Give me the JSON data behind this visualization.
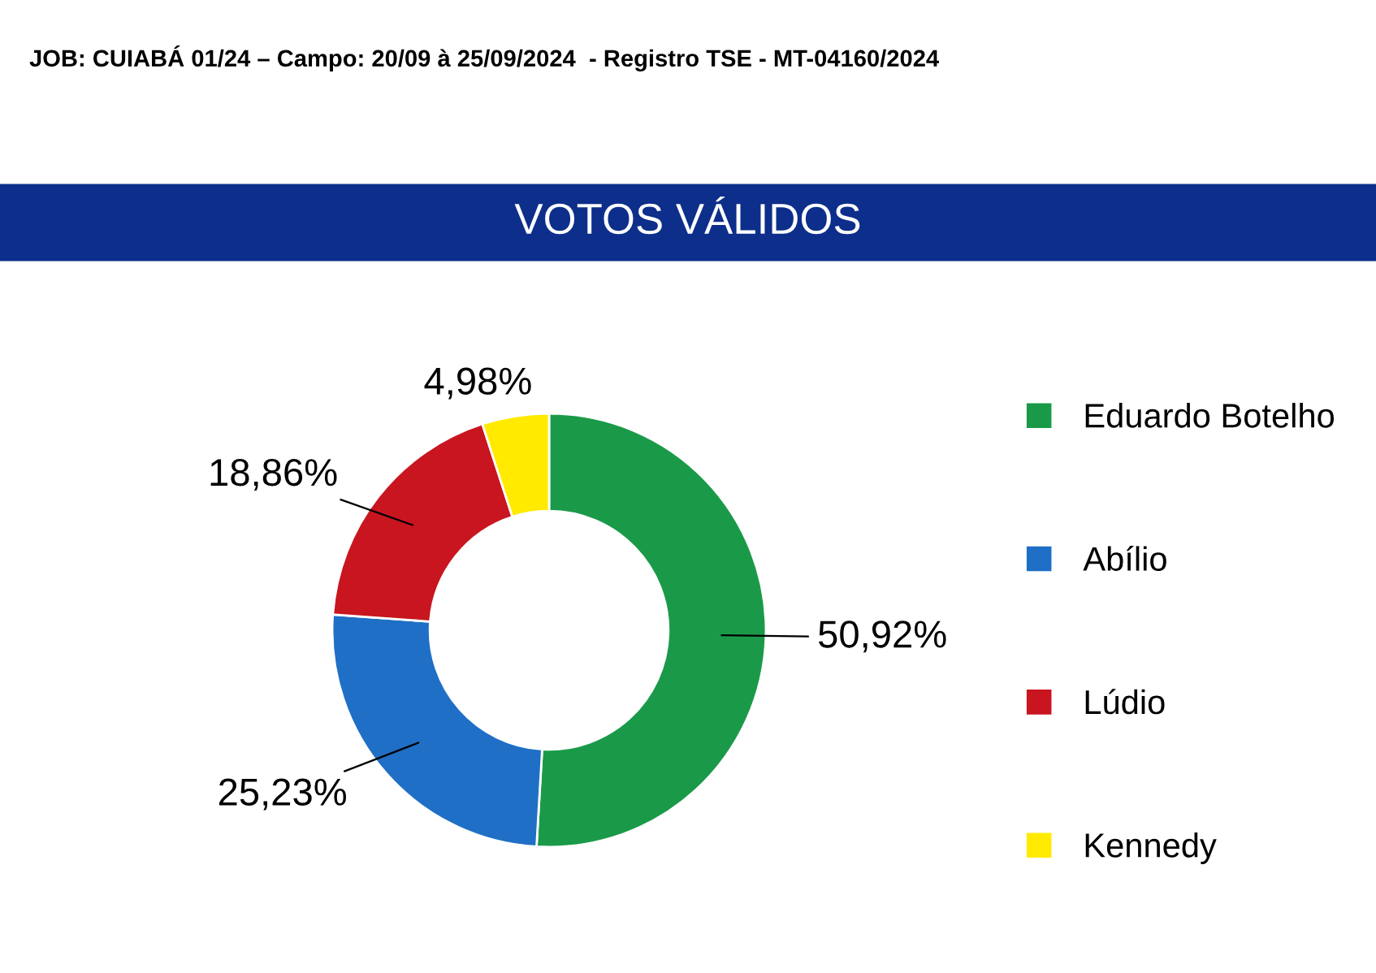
{
  "chart_data": {
    "type": "donut",
    "title": "VOTOS VÁLIDOS",
    "annotations": [
      "JOB: CUIABÁ 01/24 – Campo: 20/09 à 25/09/2024  - Registro TSE - MT-04160/2024"
    ],
    "categories": [
      "Eduardo Botelho",
      "Abílio",
      "Lúdio",
      "Kennedy"
    ],
    "values": [
      50.92,
      25.23,
      18.86,
      4.98
    ],
    "value_labels": [
      "50,92%",
      "25,23%",
      "18,86%",
      "4,98%"
    ],
    "colors": [
      "#1a9a48",
      "#1f6fc6",
      "#c8151f",
      "#ffea00"
    ],
    "legend": "right"
  }
}
